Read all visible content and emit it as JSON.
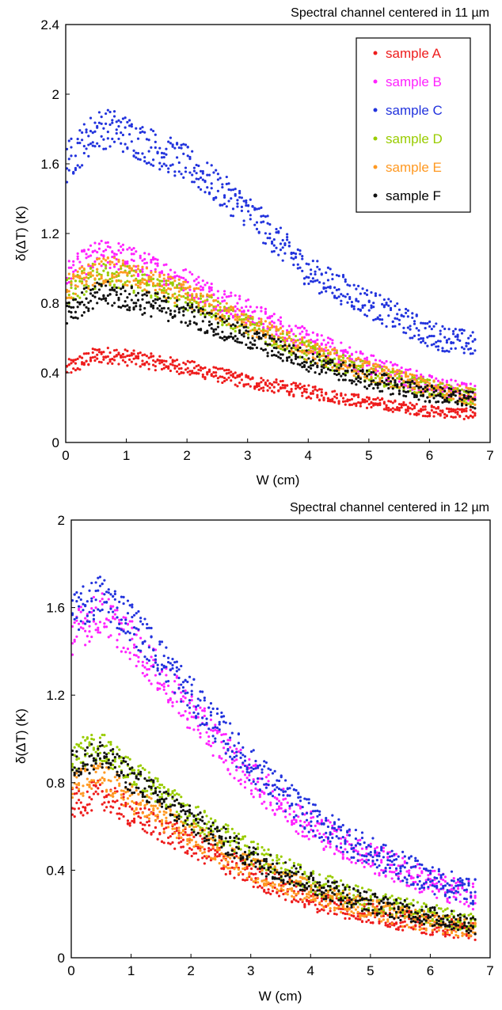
{
  "chart_data": [
    {
      "type": "scatter",
      "title": "Spectral channel centered in 11 µm",
      "xlabel": "W (cm)",
      "ylabel": "δ(ΔT) (K)",
      "xlim": [
        0,
        7
      ],
      "ylim": [
        0,
        2.4
      ],
      "xticks": [
        "0",
        "1",
        "2",
        "3",
        "4",
        "5",
        "6",
        "7"
      ],
      "yticks": [
        "0",
        "0.4",
        "0.8",
        "1.2",
        "1.6",
        "2",
        "2.4"
      ],
      "grid": false,
      "legend_position": "top-right",
      "series": [
        {
          "name": "sample A",
          "color": "#ee1c1c",
          "profile": [
            [
              0,
              0.42
            ],
            [
              0.5,
              0.5
            ],
            [
              0.8,
              0.5
            ],
            [
              2,
              0.43
            ],
            [
              3,
              0.35
            ],
            [
              4,
              0.29
            ],
            [
              5,
              0.23
            ],
            [
              6,
              0.18
            ],
            [
              6.75,
              0.16
            ]
          ],
          "spread": 0.05
        },
        {
          "name": "sample B",
          "color": "#ff22ff",
          "profile": [
            [
              0,
              0.95
            ],
            [
              0.5,
              1.07
            ],
            [
              0.8,
              1.08
            ],
            [
              2,
              0.92
            ],
            [
              3,
              0.75
            ],
            [
              4,
              0.58
            ],
            [
              5,
              0.45
            ],
            [
              6,
              0.33
            ],
            [
              6.75,
              0.28
            ]
          ],
          "spread": 0.09
        },
        {
          "name": "sample C",
          "color": "#2233dd",
          "profile": [
            [
              0,
              1.6
            ],
            [
              0.5,
              1.8
            ],
            [
              0.8,
              1.8
            ],
            [
              2,
              1.6
            ],
            [
              3,
              1.33
            ],
            [
              4,
              0.98
            ],
            [
              5,
              0.8
            ],
            [
              6,
              0.62
            ],
            [
              6.75,
              0.56
            ]
          ],
          "spread": 0.12
        },
        {
          "name": "sample D",
          "color": "#99cc00",
          "profile": [
            [
              0,
              0.86
            ],
            [
              0.5,
              0.96
            ],
            [
              0.8,
              0.97
            ],
            [
              2,
              0.83
            ],
            [
              3,
              0.67
            ],
            [
              4,
              0.52
            ],
            [
              5,
              0.4
            ],
            [
              6,
              0.31
            ],
            [
              6.75,
              0.26
            ]
          ],
          "spread": 0.08
        },
        {
          "name": "sample E",
          "color": "#ff9922",
          "profile": [
            [
              0,
              0.88
            ],
            [
              0.5,
              0.98
            ],
            [
              0.8,
              0.99
            ],
            [
              2,
              0.85
            ],
            [
              3,
              0.68
            ],
            [
              4,
              0.53
            ],
            [
              5,
              0.41
            ],
            [
              6,
              0.31
            ],
            [
              6.75,
              0.26
            ]
          ],
          "spread": 0.08
        },
        {
          "name": "sample F",
          "color": "#111111",
          "profile": [
            [
              0,
              0.76
            ],
            [
              0.5,
              0.84
            ],
            [
              0.8,
              0.85
            ],
            [
              2,
              0.74
            ],
            [
              3,
              0.6
            ],
            [
              4,
              0.47
            ],
            [
              5,
              0.36
            ],
            [
              6,
              0.28
            ],
            [
              6.75,
              0.24
            ]
          ],
          "spread": 0.08
        }
      ]
    },
    {
      "type": "scatter",
      "title": "Spectral channel centered in 12 µm",
      "xlabel": "W (cm)",
      "ylabel": "δ(ΔT) (K)",
      "xlim": [
        0,
        7
      ],
      "ylim": [
        0,
        2
      ],
      "xticks": [
        "0",
        "1",
        "2",
        "3",
        "4",
        "5",
        "6",
        "7"
      ],
      "yticks": [
        "0",
        "0.4",
        "0.8",
        "1.2",
        "1.6",
        "2"
      ],
      "grid": false,
      "legend_position": "none",
      "series": [
        {
          "name": "sample A",
          "color": "#ee1c1c",
          "profile": [
            [
              0,
              0.7
            ],
            [
              0.5,
              0.75
            ],
            [
              1,
              0.66
            ],
            [
              2,
              0.52
            ],
            [
              3,
              0.38
            ],
            [
              4,
              0.27
            ],
            [
              5,
              0.2
            ],
            [
              6,
              0.15
            ],
            [
              6.75,
              0.12
            ]
          ],
          "spread": 0.07
        },
        {
          "name": "sample B",
          "color": "#ff22ff",
          "profile": [
            [
              0,
              1.48
            ],
            [
              0.5,
              1.58
            ],
            [
              1,
              1.45
            ],
            [
              2,
              1.12
            ],
            [
              3,
              0.82
            ],
            [
              4,
              0.6
            ],
            [
              5,
              0.46
            ],
            [
              6,
              0.34
            ],
            [
              6.75,
              0.28
            ]
          ],
          "spread": 0.1
        },
        {
          "name": "sample C",
          "color": "#2233dd",
          "profile": [
            [
              0,
              1.56
            ],
            [
              0.5,
              1.66
            ],
            [
              1,
              1.54
            ],
            [
              2,
              1.2
            ],
            [
              3,
              0.88
            ],
            [
              4,
              0.64
            ],
            [
              5,
              0.48
            ],
            [
              6,
              0.36
            ],
            [
              6.75,
              0.3
            ]
          ],
          "spread": 0.1
        },
        {
          "name": "sample D",
          "color": "#99cc00",
          "profile": [
            [
              0,
              0.92
            ],
            [
              0.5,
              0.97
            ],
            [
              1,
              0.85
            ],
            [
              2,
              0.65
            ],
            [
              3,
              0.48
            ],
            [
              4,
              0.35
            ],
            [
              5,
              0.26
            ],
            [
              6,
              0.2
            ],
            [
              6.75,
              0.16
            ]
          ],
          "spread": 0.07
        },
        {
          "name": "sample E",
          "color": "#ff9922",
          "profile": [
            [
              0,
              0.78
            ],
            [
              0.5,
              0.83
            ],
            [
              1,
              0.73
            ],
            [
              2,
              0.56
            ],
            [
              3,
              0.41
            ],
            [
              4,
              0.3
            ],
            [
              5,
              0.22
            ],
            [
              6,
              0.16
            ],
            [
              6.75,
              0.13
            ]
          ],
          "spread": 0.07
        },
        {
          "name": "sample F",
          "color": "#111111",
          "profile": [
            [
              0,
              0.88
            ],
            [
              0.5,
              0.93
            ],
            [
              1,
              0.82
            ],
            [
              2,
              0.63
            ],
            [
              3,
              0.46
            ],
            [
              4,
              0.34
            ],
            [
              5,
              0.25
            ],
            [
              6,
              0.19
            ],
            [
              6.75,
              0.15
            ]
          ],
          "spread": 0.07
        }
      ]
    }
  ]
}
